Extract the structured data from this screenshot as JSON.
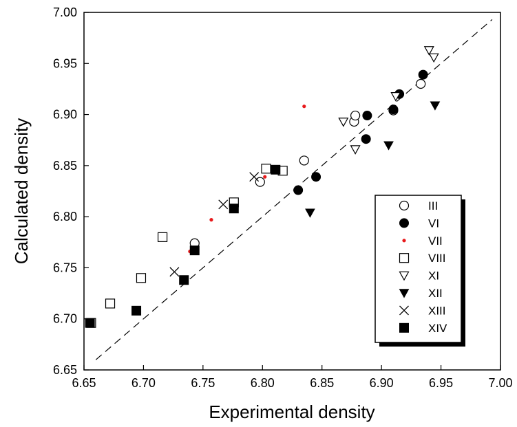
{
  "chart_data": {
    "type": "scatter",
    "title": "",
    "xlabel": "Experimental density",
    "ylabel": "Calculated density",
    "xlim": [
      6.65,
      7.0
    ],
    "ylim": [
      6.65,
      7.0
    ],
    "xticks": [
      "6.65",
      "6.70",
      "6.75",
      "6.80",
      "6.85",
      "6.90",
      "6.95",
      "7.00"
    ],
    "yticks": [
      "6.65",
      "6.70",
      "6.75",
      "6.80",
      "6.85",
      "6.90",
      "6.95",
      "7.00"
    ],
    "reference_line": {
      "style": "dashed",
      "x": [
        6.66,
        6.993
      ],
      "y": [
        6.66,
        6.993
      ]
    },
    "grid": false,
    "legend_position": "bottom-right",
    "series": [
      {
        "name": "III",
        "marker": "open-circle",
        "color": "#000000",
        "x": [
          6.743,
          6.798,
          6.835,
          6.877,
          6.878,
          6.91,
          6.933
        ],
        "y": [
          6.774,
          6.834,
          6.855,
          6.893,
          6.899,
          6.904,
          6.93
        ]
      },
      {
        "name": "VI",
        "marker": "filled-circle",
        "color": "#000000",
        "x": [
          6.83,
          6.845,
          6.887,
          6.888,
          6.91,
          6.915,
          6.935
        ],
        "y": [
          6.826,
          6.839,
          6.876,
          6.899,
          6.905,
          6.92,
          6.939
        ]
      },
      {
        "name": "VII",
        "marker": "small-dot",
        "color": "#e8191b",
        "x": [
          6.699,
          6.739,
          6.757,
          6.802,
          6.835
        ],
        "y": [
          6.737,
          6.766,
          6.797,
          6.839,
          6.908
        ]
      },
      {
        "name": "VIII",
        "marker": "open-square",
        "color": "#000000",
        "x": [
          6.656,
          6.672,
          6.698,
          6.716,
          6.776,
          6.803,
          6.817
        ],
        "y": [
          6.696,
          6.715,
          6.74,
          6.78,
          6.814,
          6.847,
          6.845
        ]
      },
      {
        "name": "XI",
        "marker": "open-triangle-down",
        "color": "#000000",
        "x": [
          6.868,
          6.878,
          6.912,
          6.94,
          6.944
        ],
        "y": [
          6.893,
          6.866,
          6.918,
          6.963,
          6.956
        ]
      },
      {
        "name": "XII",
        "marker": "filled-triangle-down",
        "color": "#000000",
        "x": [
          6.84,
          6.906,
          6.945
        ],
        "y": [
          6.804,
          6.87,
          6.909
        ]
      },
      {
        "name": "XIII",
        "marker": "cross",
        "color": "#000000",
        "x": [
          6.726,
          6.767,
          6.793
        ],
        "y": [
          6.746,
          6.812,
          6.839
        ]
      },
      {
        "name": "XIV",
        "marker": "filled-square",
        "color": "#000000",
        "x": [
          6.655,
          6.694,
          6.734,
          6.743,
          6.776,
          6.811
        ],
        "y": [
          6.696,
          6.708,
          6.738,
          6.767,
          6.808,
          6.846
        ]
      }
    ]
  }
}
